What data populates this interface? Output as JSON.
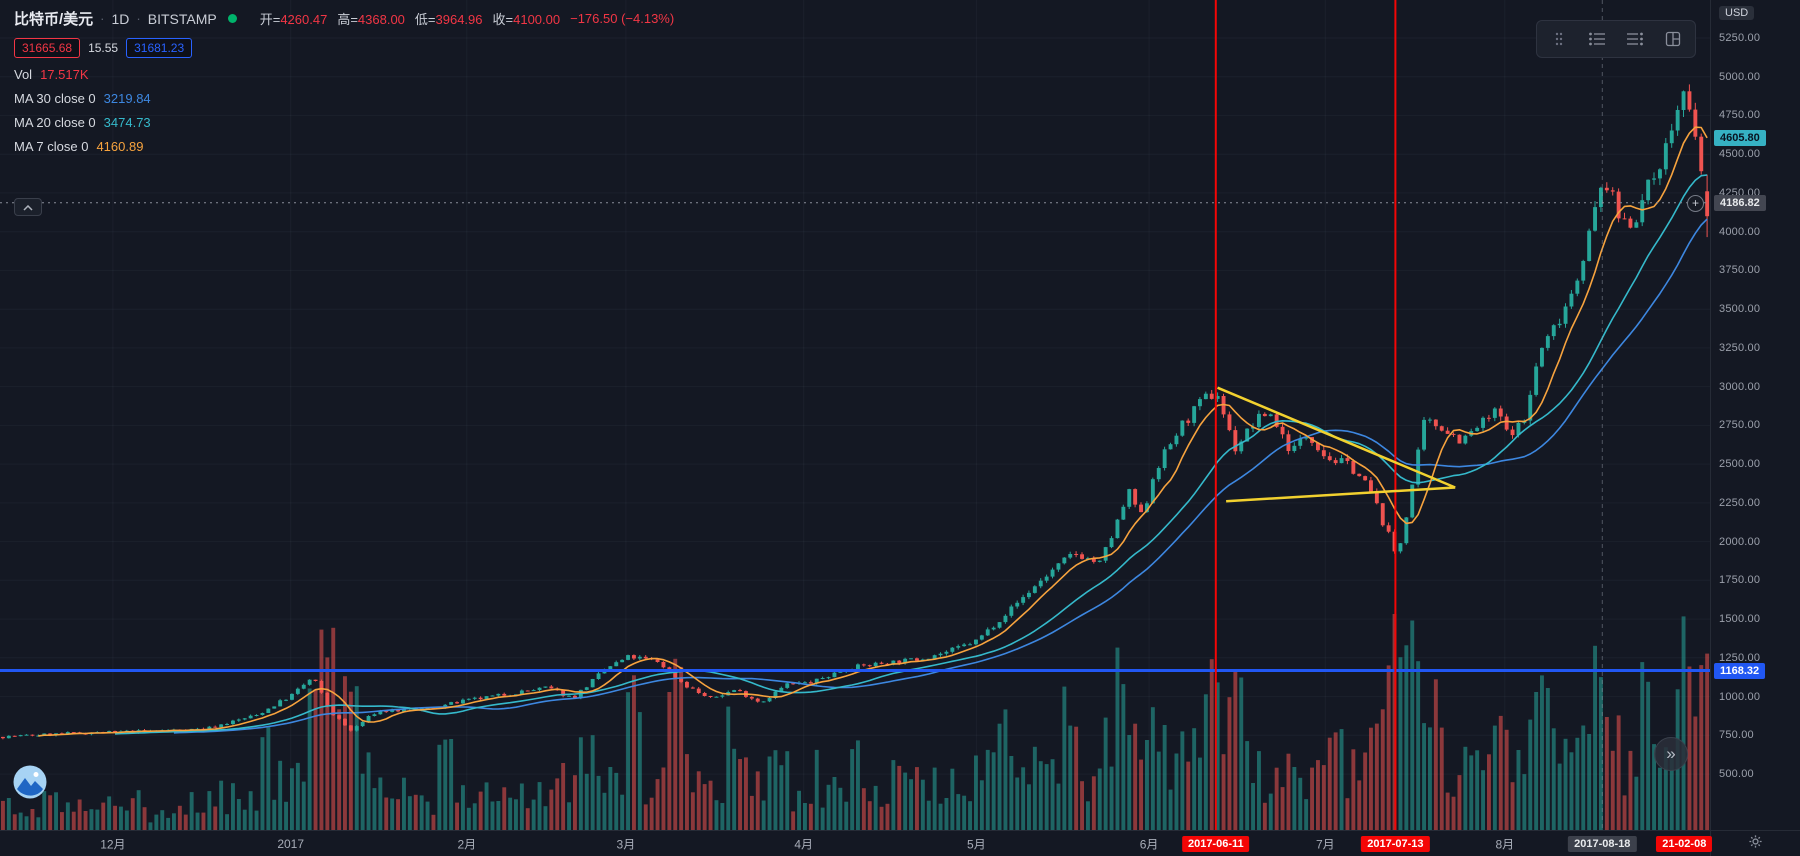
{
  "header": {
    "symbol": "比特币/美元",
    "separator": "·",
    "interval": "1D",
    "exchange": "BITSTAMP",
    "ohlc": [
      {
        "label": "开=",
        "value": "4260.47"
      },
      {
        "label": "高=",
        "value": "4368.00"
      },
      {
        "label": "低=",
        "value": "3964.96"
      },
      {
        "label": "收=",
        "value": "4100.00"
      }
    ],
    "change": "−176.50 (−4.13%)",
    "range_row": {
      "low_box": "31665.68",
      "middle": "15.55",
      "high_box": "31681.23"
    },
    "volume": {
      "label": "Vol",
      "value": "17.517K"
    },
    "indicators": [
      {
        "label": "MA 30 close 0",
        "value": "3219.84"
      },
      {
        "label": "MA 20 close 0",
        "value": "3474.73"
      },
      {
        "label": "MA 7 close 0",
        "value": "4160.89"
      }
    ]
  },
  "buttons": {
    "scroll_recent": "»",
    "plus": "+"
  },
  "price_axis": {
    "currency": "USD",
    "ticks": [
      "5250.00",
      "5000.00",
      "4750.00",
      "4500.00",
      "4250.00",
      "4000.00",
      "3750.00",
      "3500.00",
      "3250.00",
      "3000.00",
      "2750.00",
      "2500.00",
      "2250.00",
      "2000.00",
      "1750.00",
      "1500.00",
      "1250.00",
      "1000.00",
      "750.00",
      "500.00"
    ],
    "badges": [
      {
        "text": "4605.80",
        "price": 4605.8,
        "bg": "#36b1c3",
        "fg": "#081220"
      },
      {
        "text": "4186.82",
        "price": 4186.82,
        "bg": "#434651",
        "fg": "#e8eaed"
      },
      {
        "text": "1168.32",
        "price": 1168.32,
        "bg": "#2157f3",
        "fg": "#ffffff"
      }
    ]
  },
  "time_axis": {
    "labels": [
      {
        "text": "12月",
        "t": 0.066
      },
      {
        "text": "2017",
        "t": 0.17
      },
      {
        "text": "2月",
        "t": 0.273
      },
      {
        "text": "3月",
        "t": 0.366
      },
      {
        "text": "4月",
        "t": 0.47
      },
      {
        "text": "5月",
        "t": 0.571
      },
      {
        "text": "6月",
        "t": 0.672
      },
      {
        "text": "7月",
        "t": 0.775
      },
      {
        "text": "8月",
        "t": 0.88
      }
    ],
    "badges": [
      {
        "text": "2017-06-11",
        "t": 0.711,
        "bg": "#f40606",
        "fg": "#ffffff"
      },
      {
        "text": "2017-07-13",
        "t": 0.816,
        "bg": "#f40606",
        "fg": "#ffffff"
      },
      {
        "text": "2017-08-18",
        "t": 0.937,
        "bg": "#3c404b",
        "fg": "#e8eaed"
      },
      {
        "text": "21-02-08",
        "t": 0.985,
        "bg": "#f40606",
        "fg": "#ffffff"
      }
    ]
  },
  "overlays": {
    "red_vlines": {
      "color": "#f40606",
      "t": [
        0.711,
        0.816
      ]
    },
    "dashed_vline": {
      "color": "#9aa0ad",
      "t": 0.937
    },
    "blue_hline": {
      "price": 1168.32,
      "color": "#2157f3"
    },
    "dashed_hline": {
      "price": 4186.82,
      "color": "#8a8e99"
    },
    "triangle": {
      "color": "#f2d12f",
      "top_start": [
        0.712,
        2993
      ],
      "bottom_start": [
        0.717,
        2261
      ],
      "apex": [
        0.851,
        2349
      ]
    }
  },
  "chart_data": {
    "type": "candlestick",
    "title": "比特币/美元 1D BITSTAMP",
    "currency": "USD",
    "last_candle": {
      "open": 4260.47,
      "high": 4368.0,
      "low": 3964.96,
      "close": 4100.0,
      "change": -176.5,
      "change_pct": -4.13
    },
    "y_axis": {
      "pane_top_price": 5495,
      "pane_bottom_price": 139,
      "tick_step": 250,
      "visible_min": 500,
      "visible_max": 5250
    },
    "x_range": [
      "2016-11-22",
      "2017-09-08"
    ],
    "num_bars": 290,
    "up_color": "#26a69a",
    "down_color": "#ef5350",
    "volume_up_color": "rgba(38,166,154,0.55)",
    "volume_down_color": "rgba(239,83,80,0.55)",
    "ma_lines": [
      {
        "name": "MA7",
        "window": 7,
        "color": "#f7a33e"
      },
      {
        "name": "MA20",
        "window": 20,
        "color": "#35b9cb"
      },
      {
        "name": "MA30",
        "window": 30,
        "color": "#3d87e0"
      }
    ],
    "close_anchors": [
      [
        0.0,
        740
      ],
      [
        0.04,
        762
      ],
      [
        0.08,
        775
      ],
      [
        0.12,
        792
      ],
      [
        0.15,
        880
      ],
      [
        0.17,
        1005
      ],
      [
        0.183,
        1125
      ],
      [
        0.193,
        905
      ],
      [
        0.205,
        778
      ],
      [
        0.22,
        902
      ],
      [
        0.25,
        921
      ],
      [
        0.27,
        968
      ],
      [
        0.3,
        1022
      ],
      [
        0.32,
        1058
      ],
      [
        0.335,
        990
      ],
      [
        0.355,
        1185
      ],
      [
        0.368,
        1258
      ],
      [
        0.385,
        1225
      ],
      [
        0.4,
        1080
      ],
      [
        0.415,
        985
      ],
      [
        0.43,
        1045
      ],
      [
        0.445,
        962
      ],
      [
        0.46,
        1078
      ],
      [
        0.475,
        1092
      ],
      [
        0.495,
        1182
      ],
      [
        0.515,
        1215
      ],
      [
        0.535,
        1238
      ],
      [
        0.555,
        1292
      ],
      [
        0.571,
        1360
      ],
      [
        0.59,
        1555
      ],
      [
        0.61,
        1762
      ],
      [
        0.628,
        1928
      ],
      [
        0.643,
        1858
      ],
      [
        0.652,
        2082
      ],
      [
        0.66,
        2318
      ],
      [
        0.668,
        2150
      ],
      [
        0.675,
        2452
      ],
      [
        0.69,
        2735
      ],
      [
        0.705,
        2928
      ],
      [
        0.712,
        2952
      ],
      [
        0.722,
        2598
      ],
      [
        0.733,
        2760
      ],
      [
        0.742,
        2845
      ],
      [
        0.755,
        2582
      ],
      [
        0.765,
        2700
      ],
      [
        0.776,
        2542
      ],
      [
        0.79,
        2488
      ],
      [
        0.801,
        2338
      ],
      [
        0.812,
        2042
      ],
      [
        0.817,
        1892
      ],
      [
        0.824,
        2258
      ],
      [
        0.833,
        2772
      ],
      [
        0.843,
        2742
      ],
      [
        0.855,
        2648
      ],
      [
        0.866,
        2758
      ],
      [
        0.876,
        2848
      ],
      [
        0.881,
        2702
      ],
      [
        0.891,
        2762
      ],
      [
        0.9,
        3212
      ],
      [
        0.911,
        3422
      ],
      [
        0.921,
        3658
      ],
      [
        0.93,
        4012
      ],
      [
        0.938,
        4352
      ],
      [
        0.947,
        4092
      ],
      [
        0.955,
        4058
      ],
      [
        0.965,
        4312
      ],
      [
        0.975,
        4562
      ],
      [
        0.984,
        4908
      ],
      [
        0.991,
        4612
      ],
      [
        1.0,
        4100
      ]
    ],
    "volume_spikes": [
      [
        0.155,
        0.5
      ],
      [
        0.185,
        0.95
      ],
      [
        0.195,
        1.0
      ],
      [
        0.205,
        0.8
      ],
      [
        0.26,
        0.5
      ],
      [
        0.37,
        0.85
      ],
      [
        0.395,
        0.95
      ],
      [
        0.43,
        0.5
      ],
      [
        0.5,
        0.35
      ],
      [
        0.585,
        0.45
      ],
      [
        0.625,
        0.6
      ],
      [
        0.655,
        0.7
      ],
      [
        0.71,
        0.95
      ],
      [
        0.722,
        0.7
      ],
      [
        0.78,
        0.55
      ],
      [
        0.815,
        1.0
      ],
      [
        0.827,
        0.85
      ],
      [
        0.84,
        0.7
      ],
      [
        0.875,
        0.5
      ],
      [
        0.905,
        0.6
      ],
      [
        0.935,
        0.8
      ],
      [
        0.965,
        0.6
      ],
      [
        0.985,
        0.95
      ],
      [
        0.997,
        0.85
      ]
    ]
  }
}
